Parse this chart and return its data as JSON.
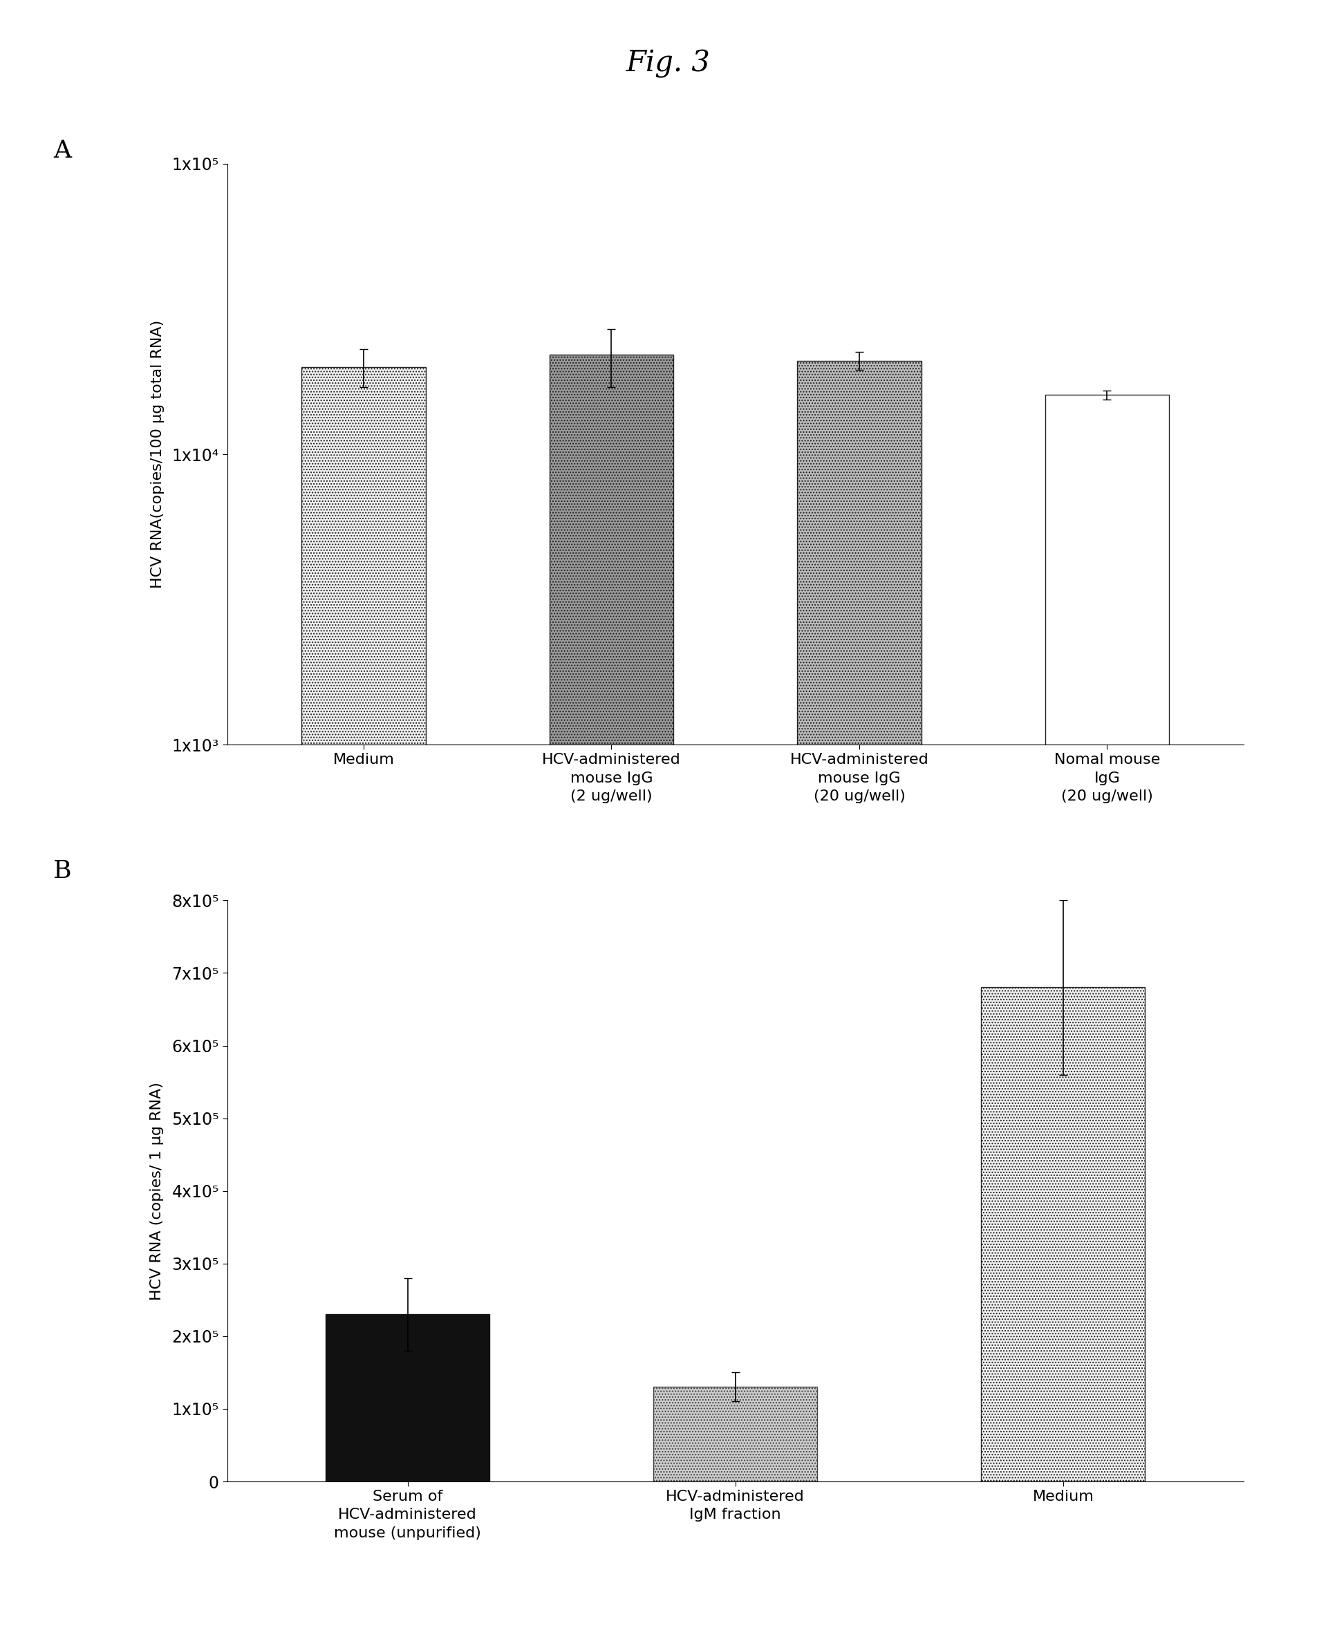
{
  "title": "Fig. 3",
  "panel_A": {
    "label": "A",
    "ylabel": "HCV RNA(copies/100 μg total RNA)",
    "categories": [
      "Medium",
      "HCV-administered\nmouse IgG\n(2 ug/well)",
      "HCV-administered\nmouse IgG\n(20 ug/well)",
      "Nomal mouse\nIgG\n(20 ug/well)"
    ],
    "values": [
      20000.0,
      22000.0,
      21000.0,
      16000.0
    ],
    "errors": [
      3000,
      5000,
      1500,
      600
    ],
    "ylim_log": [
      1000.0,
      100000.0
    ],
    "yticks": [
      1000.0,
      10000.0,
      100000.0
    ],
    "yticklabels": [
      "1x10³",
      "1x10⁴",
      "1x10⁵"
    ],
    "bar_colors": [
      "#f0f0f0",
      "#999999",
      "#bbbbbb",
      "#ffffff"
    ],
    "bar_edgecolors": [
      "#222222",
      "#222222",
      "#222222",
      "#222222"
    ],
    "hatch_patterns": [
      "....",
      "....",
      "....",
      ""
    ]
  },
  "panel_B": {
    "label": "B",
    "ylabel": "HCV RNA (copies/ 1 μg RNA)",
    "categories": [
      "Serum of\nHCV-administered\nmouse (unpurified)",
      "HCV-administered\nIgM fraction",
      "Medium"
    ],
    "values": [
      230000.0,
      130000.0,
      680000.0
    ],
    "errors": [
      50000.0,
      20000.0,
      120000.0
    ],
    "ylim": [
      0,
      800000.0
    ],
    "yticks": [
      0,
      100000.0,
      200000.0,
      300000.0,
      400000.0,
      500000.0,
      600000.0,
      700000.0,
      800000.0
    ],
    "yticklabels": [
      "0",
      "1x10⁵",
      "2x10⁵",
      "3x10⁵",
      "4x10⁵",
      "5x10⁵",
      "6x10⁵",
      "7x10⁵",
      "8x10⁵"
    ],
    "bar_colors": [
      "#111111",
      "#cccccc",
      "#f0f0f0"
    ],
    "bar_edgecolors": [
      "#111111",
      "#444444",
      "#222222"
    ],
    "hatch_patterns": [
      "",
      "....",
      "...."
    ]
  },
  "background_color": "#ffffff",
  "font_size": 17,
  "label_font_size": 26,
  "title_font_size": 30,
  "bar_width": 0.5
}
